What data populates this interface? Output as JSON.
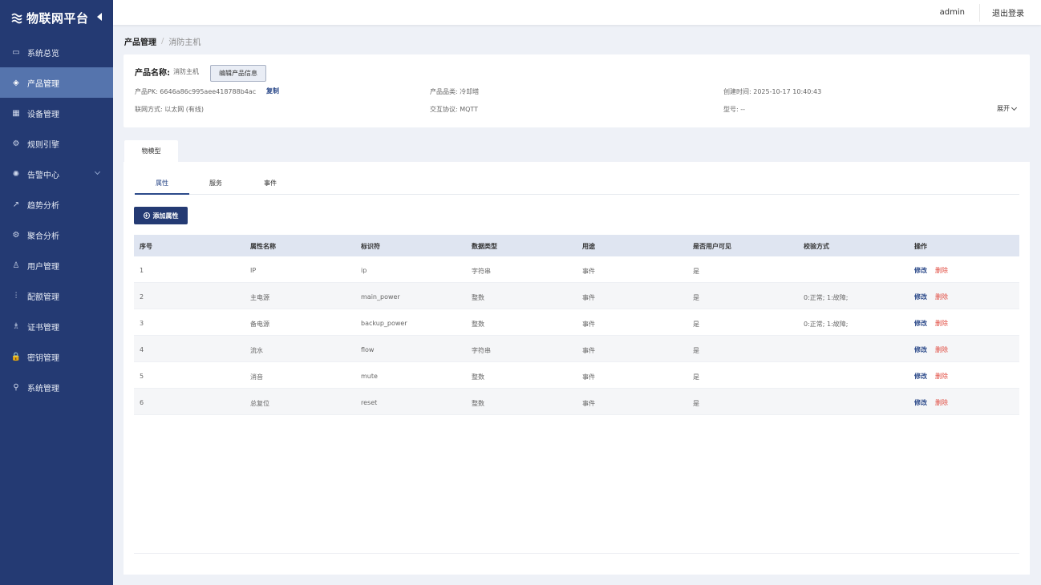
{
  "brand": {
    "title": "物联网平台"
  },
  "sidebar": {
    "items": [
      {
        "label": "系统总览",
        "icon": "dashboard-icon",
        "glyph": "▭",
        "active": false
      },
      {
        "label": "产品管理",
        "icon": "layers-icon",
        "glyph": "◈",
        "active": true
      },
      {
        "label": "设备管理",
        "icon": "device-icon",
        "glyph": "▦",
        "active": false
      },
      {
        "label": "规则引擎",
        "icon": "rules-icon",
        "glyph": "⚙",
        "active": false
      },
      {
        "label": "告警中心",
        "icon": "alarm-icon",
        "glyph": "✺",
        "active": false,
        "has_submenu": true
      },
      {
        "label": "趋势分析",
        "icon": "trend-icon",
        "glyph": "↗",
        "active": false
      },
      {
        "label": "聚合分析",
        "icon": "aggregate-icon",
        "glyph": "⚙",
        "active": false
      },
      {
        "label": "用户管理",
        "icon": "user-icon",
        "glyph": "♙",
        "active": false
      },
      {
        "label": "配额管理",
        "icon": "quota-icon",
        "glyph": "⫶",
        "active": false
      },
      {
        "label": "证书管理",
        "icon": "certificate-icon",
        "glyph": "♗",
        "active": false
      },
      {
        "label": "密钥管理",
        "icon": "lock-icon",
        "glyph": "🔒",
        "active": false
      },
      {
        "label": "系统管理",
        "icon": "system-icon",
        "glyph": "⚲",
        "active": false
      }
    ]
  },
  "header": {
    "user": "admin",
    "logout": "退出登录"
  },
  "breadcrumb": {
    "first": "产品管理",
    "separator": "/",
    "current": "消防主机"
  },
  "product": {
    "name_label": "产品名称:",
    "name_value": "消防主机",
    "edit_button": "编辑产品信息",
    "pk": "产品PK: 6646a86c995aee418788b4ac",
    "copy": "复制",
    "category": "产品品类: 冷却塔",
    "created": "创建时间: 2025-10-17 10:40:43",
    "network": "联网方式: 以太网 (有线)",
    "protocol": "交互协议: MQTT",
    "model": "型号: --",
    "expand": "展开"
  },
  "main_tab": {
    "label": "物模型"
  },
  "subtabs": [
    {
      "label": "属性",
      "active": true
    },
    {
      "label": "服务",
      "active": false
    },
    {
      "label": "事件",
      "active": false
    }
  ],
  "add_button": {
    "label": "添加属性"
  },
  "table": {
    "headers": [
      "序号",
      "属性名称",
      "标识符",
      "数据类型",
      "用途",
      "是否用户可见",
      "校验方式",
      "操作"
    ],
    "rows": [
      {
        "no": "1",
        "name": "IP",
        "identifier": "ip",
        "type": "字符串",
        "usage": "事件",
        "visible": "是",
        "check": "",
        "edit": "修改",
        "delete": "删除"
      },
      {
        "no": "2",
        "name": "主电源",
        "identifier": "main_power",
        "type": "整数",
        "usage": "事件",
        "visible": "是",
        "check": "0:正常; 1:故障;",
        "edit": "修改",
        "delete": "删除"
      },
      {
        "no": "3",
        "name": "备电源",
        "identifier": "backup_power",
        "type": "整数",
        "usage": "事件",
        "visible": "是",
        "check": "0:正常; 1:故障;",
        "edit": "修改",
        "delete": "删除"
      },
      {
        "no": "4",
        "name": "流水",
        "identifier": "flow",
        "type": "字符串",
        "usage": "事件",
        "visible": "是",
        "check": "",
        "edit": "修改",
        "delete": "删除"
      },
      {
        "no": "5",
        "name": "消音",
        "identifier": "mute",
        "type": "整数",
        "usage": "事件",
        "visible": "是",
        "check": "",
        "edit": "修改",
        "delete": "删除"
      },
      {
        "no": "6",
        "name": "总复位",
        "identifier": "reset",
        "type": "整数",
        "usage": "事件",
        "visible": "是",
        "check": "",
        "edit": "修改",
        "delete": "删除"
      }
    ]
  },
  "colors": {
    "sidebar": "#243a73",
    "active_item": "#5574ad",
    "primary": "#243a73",
    "danger": "#e0473c",
    "link": "#2c4a8a"
  }
}
